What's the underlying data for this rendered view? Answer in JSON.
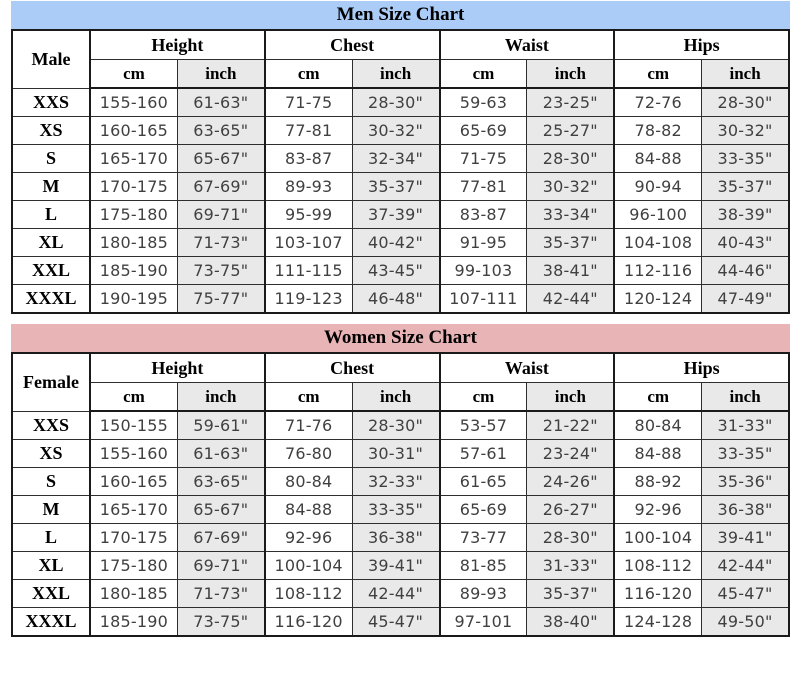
{
  "colors": {
    "men_title_bg": "#aaccf7",
    "women_title_bg": "#e9b4b6",
    "inch_column_bg": "#e9e9e9",
    "border": "#1a1a1a"
  },
  "men": {
    "title": "Men Size Chart",
    "gender_label": "Male",
    "groups": [
      "Height",
      "Chest",
      "Waist",
      "Hips"
    ],
    "unit_labels": [
      "cm",
      "inch",
      "cm",
      "inch",
      "cm",
      "inch",
      "cm",
      "inch"
    ],
    "rows": [
      {
        "size": "XXS",
        "values": [
          "155-160",
          "61-63\"",
          "71-75",
          "28-30\"",
          "59-63",
          "23-25\"",
          "72-76",
          "28-30\""
        ]
      },
      {
        "size": "XS",
        "values": [
          "160-165",
          "63-65\"",
          "77-81",
          "30-32\"",
          "65-69",
          "25-27\"",
          "78-82",
          "30-32\""
        ]
      },
      {
        "size": "S",
        "values": [
          "165-170",
          "65-67\"",
          "83-87",
          "32-34\"",
          "71-75",
          "28-30\"",
          "84-88",
          "33-35\""
        ]
      },
      {
        "size": "M",
        "values": [
          "170-175",
          "67-69\"",
          "89-93",
          "35-37\"",
          "77-81",
          "30-32\"",
          "90-94",
          "35-37\""
        ]
      },
      {
        "size": "L",
        "values": [
          "175-180",
          "69-71\"",
          "95-99",
          "37-39\"",
          "83-87",
          "33-34\"",
          "96-100",
          "38-39\""
        ]
      },
      {
        "size": "XL",
        "values": [
          "180-185",
          "71-73\"",
          "103-107",
          "40-42\"",
          "91-95",
          "35-37\"",
          "104-108",
          "40-43\""
        ]
      },
      {
        "size": "XXL",
        "values": [
          "185-190",
          "73-75\"",
          "111-115",
          "43-45\"",
          "99-103",
          "38-41\"",
          "112-116",
          "44-46\""
        ]
      },
      {
        "size": "XXXL",
        "values": [
          "190-195",
          "75-77\"",
          "119-123",
          "46-48\"",
          "107-111",
          "42-44\"",
          "120-124",
          "47-49\""
        ]
      }
    ]
  },
  "women": {
    "title": "Women Size Chart",
    "gender_label": "Female",
    "groups": [
      "Height",
      "Chest",
      "Waist",
      "Hips"
    ],
    "unit_labels": [
      "cm",
      "inch",
      "cm",
      "inch",
      "cm",
      "inch",
      "cm",
      "inch"
    ],
    "rows": [
      {
        "size": "XXS",
        "values": [
          "150-155",
          "59-61\"",
          "71-76",
          "28-30\"",
          "53-57",
          "21-22\"",
          "80-84",
          "31-33\""
        ]
      },
      {
        "size": "XS",
        "values": [
          "155-160",
          "61-63\"",
          "76-80",
          "30-31\"",
          "57-61",
          "23-24\"",
          "84-88",
          "33-35\""
        ]
      },
      {
        "size": "S",
        "values": [
          "160-165",
          "63-65\"",
          "80-84",
          "32-33\"",
          "61-65",
          "24-26\"",
          "88-92",
          "35-36\""
        ]
      },
      {
        "size": "M",
        "values": [
          "165-170",
          "65-67\"",
          "84-88",
          "33-35\"",
          "65-69",
          "26-27\"",
          "92-96",
          "36-38\""
        ]
      },
      {
        "size": "L",
        "values": [
          "170-175",
          "67-69\"",
          "92-96",
          "36-38\"",
          "73-77",
          "28-30\"",
          "100-104",
          "39-41\""
        ]
      },
      {
        "size": "XL",
        "values": [
          "175-180",
          "69-71\"",
          "100-104",
          "39-41\"",
          "81-85",
          "31-33\"",
          "108-112",
          "42-44\""
        ]
      },
      {
        "size": "XXL",
        "values": [
          "180-185",
          "71-73\"",
          "108-112",
          "42-44\"",
          "89-93",
          "35-37\"",
          "116-120",
          "45-47\""
        ]
      },
      {
        "size": "XXXL",
        "values": [
          "185-190",
          "73-75\"",
          "116-120",
          "45-47\"",
          "97-101",
          "38-40\"",
          "124-128",
          "49-50\""
        ]
      }
    ]
  }
}
